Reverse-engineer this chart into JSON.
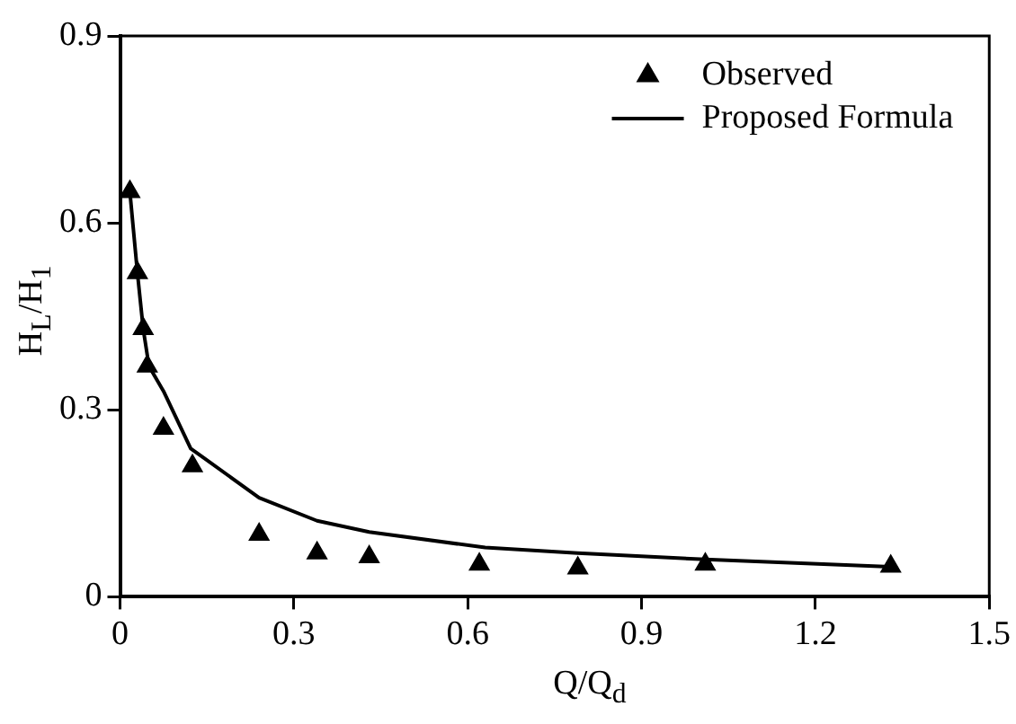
{
  "chart_data": {
    "type": "scatter",
    "xlabel": "Q/Q$_{d}$",
    "ylabel": "H$_{L}$/H$_{1}$",
    "series": [
      {
        "name": "Observed",
        "type": "scatter",
        "color": "#000000",
        "marker": "triangle",
        "x": [
          0.017,
          0.03,
          0.04,
          0.047,
          0.075,
          0.125,
          0.24,
          0.34,
          0.43,
          0.62,
          0.79,
          1.01,
          1.33
        ],
        "values": [
          0.65,
          0.52,
          0.43,
          0.37,
          0.27,
          0.21,
          0.1,
          0.07,
          0.064,
          0.052,
          0.046,
          0.052,
          0.049
        ]
      },
      {
        "name": "Proposed Formula",
        "type": "line",
        "color": "#000000",
        "marker": "none",
        "line_style": "solid",
        "x": [
          0.017,
          0.03,
          0.04,
          0.05,
          0.075,
          0.122,
          0.24,
          0.34,
          0.43,
          0.63,
          0.79,
          1.01,
          1.33
        ],
        "values": [
          0.65,
          0.52,
          0.43,
          0.37,
          0.33,
          0.238,
          0.159,
          0.122,
          0.104,
          0.079,
          0.07,
          0.06,
          0.048
        ]
      }
    ],
    "xlim": [
      0,
      1.5
    ],
    "xticks": [
      0,
      0.3,
      0.6,
      0.9,
      1.2,
      1.5
    ],
    "ylim": [
      0,
      0.9
    ],
    "yticks": [
      0,
      0.3,
      0.6,
      0.9
    ],
    "grid": false,
    "legend": "top right"
  }
}
